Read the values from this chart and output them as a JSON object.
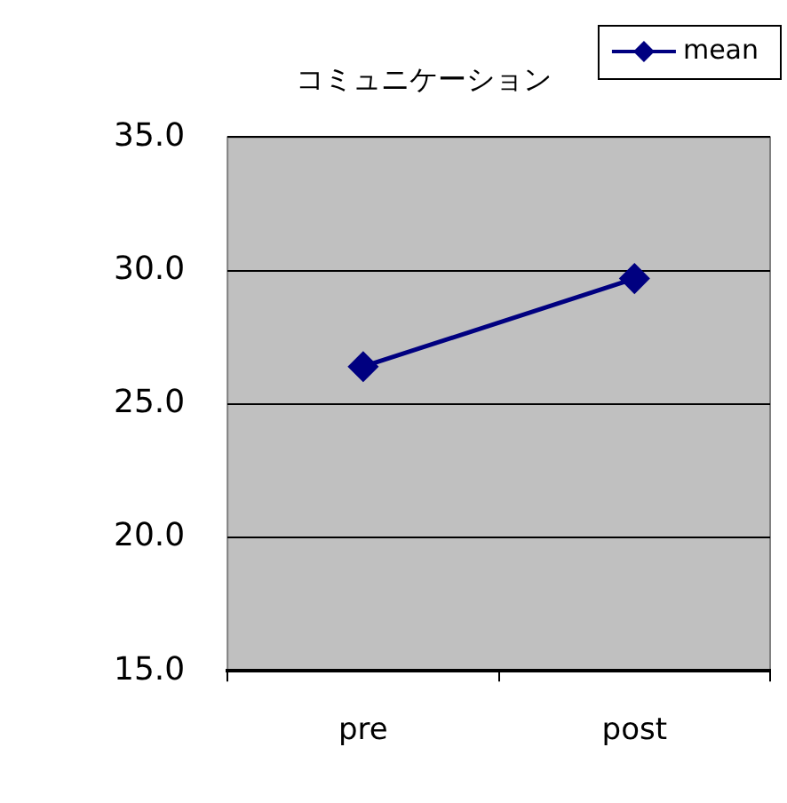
{
  "chart_data": {
    "type": "line",
    "title": "コミュニケーション",
    "categories": [
      "pre",
      "post"
    ],
    "series": [
      {
        "name": "mean",
        "color": "#000080",
        "values": [
          26.4,
          29.7
        ]
      }
    ],
    "ylim": [
      15,
      35
    ],
    "yticks": [
      {
        "value": 15,
        "label": "15.0"
      },
      {
        "value": 20,
        "label": "20.0"
      },
      {
        "value": 25,
        "label": "25.0"
      },
      {
        "value": 30,
        "label": "30.0"
      },
      {
        "value": 35,
        "label": "35.0"
      }
    ],
    "grid": "y",
    "legend": "top right",
    "marker": "diamond",
    "line_style": "solid"
  }
}
